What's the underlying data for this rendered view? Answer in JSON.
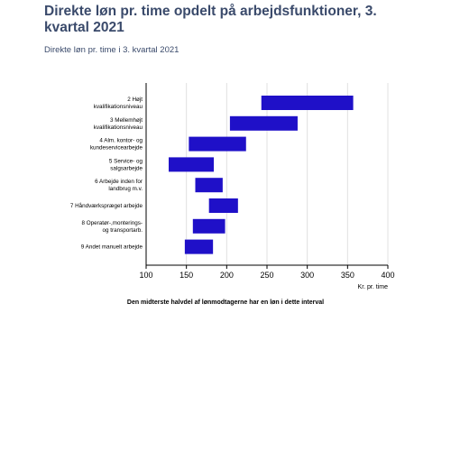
{
  "header": {
    "title": "Direkte løn pr. time opdelt på arbejdsfunktioner, 3. kvartal 2021",
    "subtitle": "Direkte løn pr. time i 3. kvartal 2021"
  },
  "footer": {
    "note": "Den midterste halvdel af lønmodtagerne har en løn i dette interval"
  },
  "colors": {
    "bar": "#1f10c8",
    "grid": "#e0e0e0",
    "axis": "#000000",
    "title": "#3a4a6b"
  },
  "chart_data": {
    "type": "bar",
    "orientation": "horizontal-range",
    "categories": [
      [
        "2 Højt",
        "kvalifikationsniveau"
      ],
      [
        "3 Mellemhøjt",
        "kvalifikationsniveau"
      ],
      [
        "4 Alm. kontor- og",
        "kundeservicearbejde"
      ],
      [
        "5 Service- og",
        "salgsarbejde"
      ],
      [
        "6 Arbejde inden for",
        "landbrug m.v."
      ],
      [
        "7 Håndværkspræget arbejde"
      ],
      [
        "8 Operatør-,monterings-",
        "og transportarb."
      ],
      [
        "9 Andet manuelt arbejde"
      ]
    ],
    "ranges": [
      [
        243,
        357
      ],
      [
        204,
        288
      ],
      [
        153,
        224
      ],
      [
        128,
        184
      ],
      [
        161,
        195
      ],
      [
        178,
        214
      ],
      [
        158,
        198
      ],
      [
        148,
        183
      ]
    ],
    "xlim": [
      100,
      400
    ],
    "xticks": [
      100,
      150,
      200,
      250,
      300,
      350,
      400
    ],
    "xlabel": "Kr. pr. time",
    "grid": "vertical"
  }
}
